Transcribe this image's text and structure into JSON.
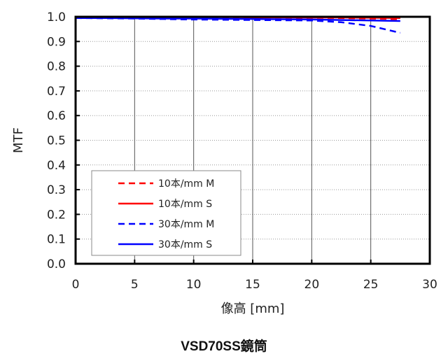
{
  "chart_data": {
    "type": "line",
    "title": "VSD70SS鏡筒",
    "xlabel": "像高 [mm]",
    "ylabel": "MTF",
    "xlim": [
      0,
      30
    ],
    "ylim": [
      0.0,
      1.0
    ],
    "xticks": [
      "0",
      "5",
      "10",
      "15",
      "20",
      "25",
      "30"
    ],
    "yticks": [
      "0.0",
      "0.1",
      "0.2",
      "0.3",
      "0.4",
      "0.5",
      "0.6",
      "0.7",
      "0.8",
      "0.9",
      "1.0"
    ],
    "grid": {
      "x": "solid vertical",
      "y": "dotted horizontal"
    },
    "legend_position": "lower-left inside plot",
    "x": [
      0,
      2.5,
      5,
      7.5,
      10,
      12.5,
      15,
      17.5,
      20,
      22.5,
      25,
      27.5
    ],
    "series": [
      {
        "name": "10本/mm M",
        "color": "#ff0000",
        "style": "dashed",
        "values": [
          1.0,
          1.0,
          0.999,
          0.999,
          0.998,
          0.998,
          0.997,
          0.997,
          0.996,
          0.995,
          0.993,
          0.99
        ]
      },
      {
        "name": "10本/mm S",
        "color": "#ff0000",
        "style": "solid",
        "values": [
          1.0,
          1.0,
          1.0,
          0.999,
          0.999,
          0.999,
          0.998,
          0.998,
          0.997,
          0.997,
          0.996,
          0.995
        ]
      },
      {
        "name": "30本/mm M",
        "color": "#0000ff",
        "style": "dashed",
        "values": [
          0.995,
          0.994,
          0.993,
          0.991,
          0.989,
          0.988,
          0.987,
          0.986,
          0.985,
          0.978,
          0.963,
          0.935
        ]
      },
      {
        "name": "30本/mm S",
        "color": "#0000ff",
        "style": "solid",
        "values": [
          0.995,
          0.995,
          0.994,
          0.993,
          0.993,
          0.992,
          0.991,
          0.99,
          0.989,
          0.987,
          0.985,
          0.983
        ]
      }
    ]
  },
  "caption": "VSD70SS鏡筒"
}
